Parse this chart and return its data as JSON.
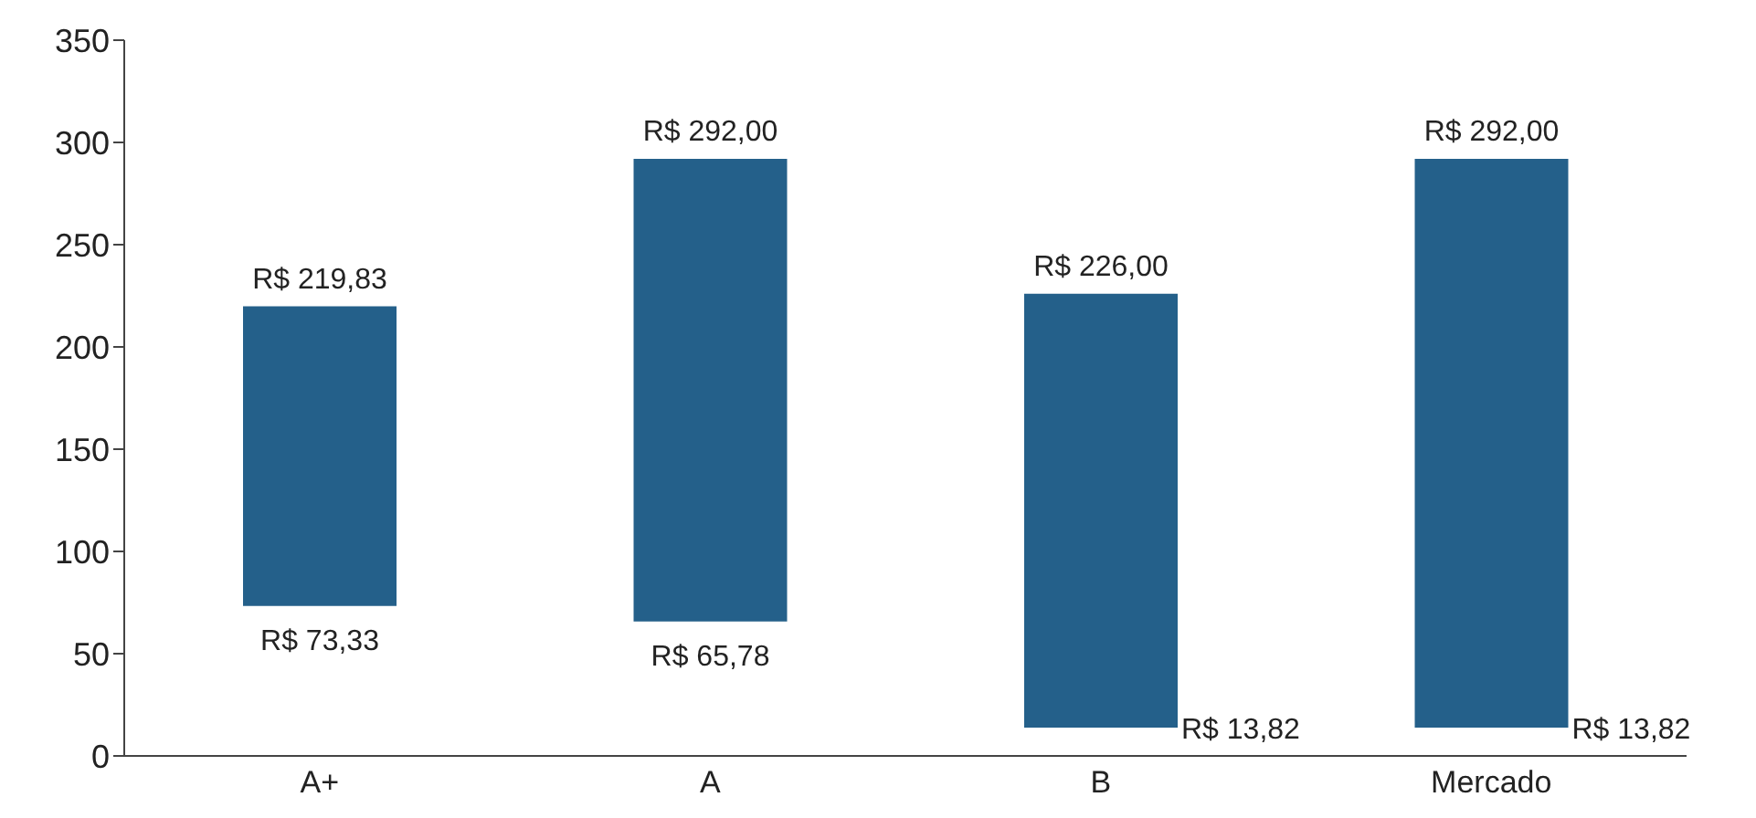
{
  "chart_data": {
    "type": "bar",
    "categories": [
      "A+",
      "A",
      "B",
      "Mercado"
    ],
    "base": [
      73.33,
      65.78,
      13.82,
      13.82
    ],
    "values": [
      146.5,
      226.22,
      212.18,
      278.18
    ],
    "color": "#24608a",
    "ylim": [
      0,
      350
    ],
    "yticks": [
      0,
      50,
      100,
      150,
      200,
      250,
      300,
      350
    ],
    "grid": false,
    "legend": false,
    "annotations": [
      {
        "text": "R$ 219,83",
        "x": "A+",
        "y": 219.83
      },
      {
        "text": "R$ 73,33",
        "x": "A+",
        "y": 73.33
      },
      {
        "text": "R$ 292,00",
        "x": "A",
        "y": 292
      },
      {
        "text": "R$ 65,78",
        "x": "A",
        "y": 65.78
      },
      {
        "text": "R$ 226,00",
        "x": "B",
        "y": 226
      },
      {
        "text": "R$ 13,82",
        "x": "B",
        "y": 13.82
      },
      {
        "text": "R$ 292,00",
        "x": "Mercado",
        "y": 292
      },
      {
        "text": "R$ 13,82",
        "x": "Mercado",
        "y": 13.82
      }
    ]
  }
}
